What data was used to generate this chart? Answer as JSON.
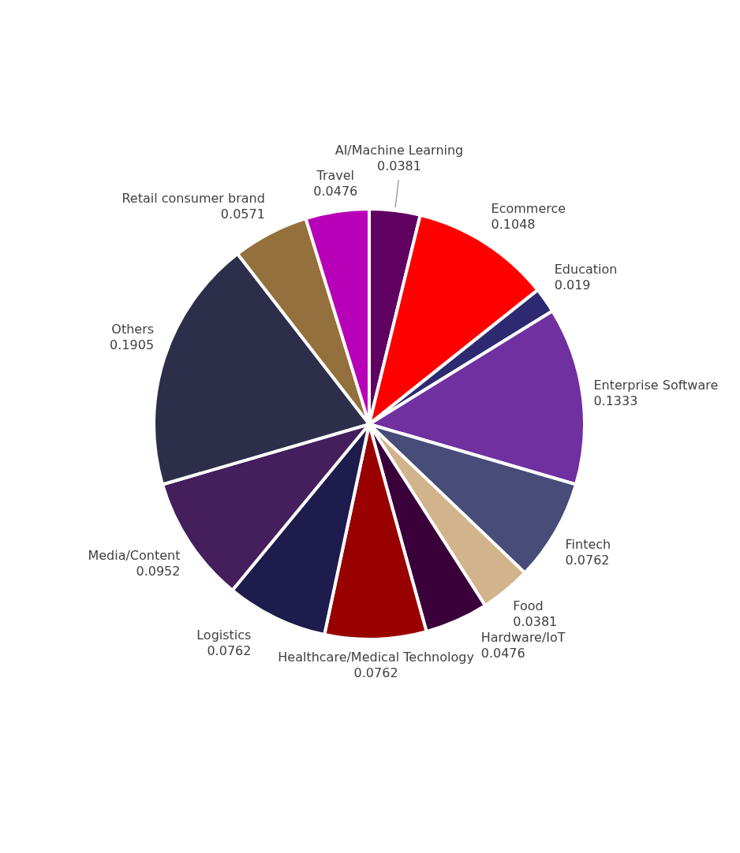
{
  "chart_data": {
    "type": "pie",
    "categories": [
      "AI/Machine Learning",
      "Ecommerce",
      "Education",
      "Enterprise Software",
      "Fintech",
      "Food",
      "Hardware/IoT",
      "Healthcare/Medical Technology",
      "Logistics",
      "Media/Content",
      "Others",
      "Retail consumer brand",
      "Travel"
    ],
    "values": [
      0.0381,
      0.1048,
      0.019,
      0.1333,
      0.0762,
      0.0381,
      0.0476,
      0.0762,
      0.0762,
      0.0952,
      0.1905,
      0.0571,
      0.0476
    ],
    "colors": [
      "#600060",
      "#ff0000",
      "#2e2a72",
      "#7030a0",
      "#474c78",
      "#d2b48c",
      "#3a003a",
      "#990000",
      "#1e1b4d",
      "#451e5e",
      "#2c2e4a",
      "#94703c",
      "#b800b8"
    ],
    "data_labels": true,
    "legend": false
  }
}
